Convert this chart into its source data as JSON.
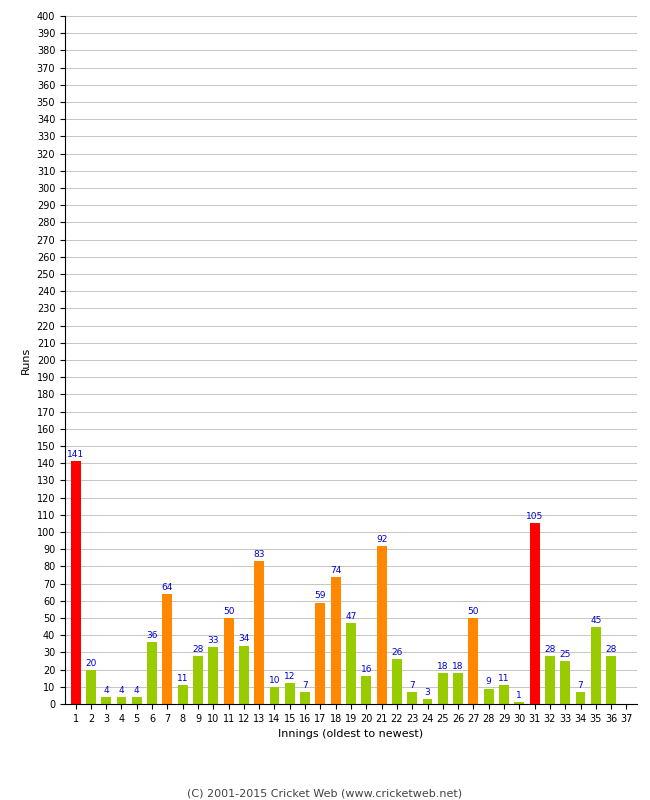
{
  "xlabel": "Innings (oldest to newest)",
  "ylabel": "Runs",
  "footnote": "(C) 2001-2015 Cricket Web (www.cricketweb.net)",
  "ylim": [
    0,
    400
  ],
  "yticks": [
    0,
    10,
    20,
    30,
    40,
    50,
    60,
    70,
    80,
    90,
    100,
    110,
    120,
    130,
    140,
    150,
    160,
    170,
    180,
    190,
    200,
    210,
    220,
    230,
    240,
    250,
    260,
    270,
    280,
    290,
    300,
    310,
    320,
    330,
    340,
    350,
    360,
    370,
    380,
    390,
    400
  ],
  "innings": [
    1,
    2,
    3,
    4,
    5,
    6,
    7,
    8,
    9,
    10,
    11,
    12,
    13,
    14,
    15,
    16,
    17,
    18,
    19,
    20,
    21,
    22,
    23,
    24,
    25,
    26,
    27,
    28,
    29,
    30,
    31,
    32,
    33,
    34,
    35,
    36,
    37
  ],
  "values": [
    141,
    20,
    4,
    4,
    4,
    36,
    64,
    11,
    28,
    33,
    50,
    34,
    83,
    10,
    12,
    7,
    59,
    74,
    47,
    16,
    92,
    26,
    7,
    3,
    18,
    18,
    50,
    9,
    11,
    1,
    105,
    28,
    25,
    7,
    45,
    28,
    0
  ],
  "colors": [
    "#ff0000",
    "#99cc00",
    "#99cc00",
    "#99cc00",
    "#99cc00",
    "#99cc00",
    "#ff8800",
    "#99cc00",
    "#99cc00",
    "#99cc00",
    "#ff8800",
    "#99cc00",
    "#ff8800",
    "#99cc00",
    "#99cc00",
    "#99cc00",
    "#ff8800",
    "#ff8800",
    "#99cc00",
    "#99cc00",
    "#ff8800",
    "#99cc00",
    "#99cc00",
    "#99cc00",
    "#99cc00",
    "#99cc00",
    "#ff8800",
    "#99cc00",
    "#99cc00",
    "#99cc00",
    "#ff0000",
    "#99cc00",
    "#99cc00",
    "#99cc00",
    "#99cc00",
    "#99cc00",
    "#99cc00"
  ],
  "show_labels": [
    1,
    1,
    1,
    1,
    1,
    1,
    1,
    1,
    1,
    1,
    1,
    1,
    1,
    1,
    1,
    1,
    1,
    1,
    1,
    1,
    1,
    1,
    1,
    1,
    1,
    1,
    1,
    1,
    1,
    1,
    1,
    1,
    1,
    1,
    1,
    1,
    0
  ],
  "bg_color": "#ffffff",
  "grid_color": "#bbbbbb",
  "bar_width": 0.65,
  "label_color": "#0000cc",
  "label_fontsize": 6.5,
  "tick_fontsize": 7,
  "footnote_fontsize": 8,
  "ylabel_fontsize": 8,
  "xlabel_fontsize": 8
}
